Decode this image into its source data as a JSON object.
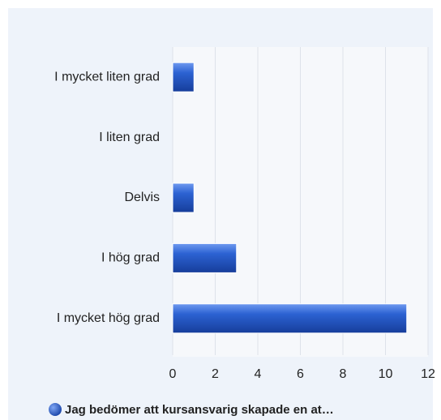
{
  "chart_data": {
    "type": "bar",
    "orientation": "horizontal",
    "categories": [
      "I mycket liten grad",
      "I liten grad",
      "Delvis",
      "I hög grad",
      "I mycket hög grad"
    ],
    "series": [
      {
        "name": "Jag bedömer att kursansvarig skapade en at…",
        "color": "#2458c6",
        "values": [
          1,
          0,
          1,
          3,
          11
        ]
      }
    ],
    "xlim": [
      0,
      12
    ],
    "xticks": [
      0,
      2,
      4,
      6,
      8,
      10,
      12
    ],
    "grid": true,
    "legend": "bottom"
  }
}
